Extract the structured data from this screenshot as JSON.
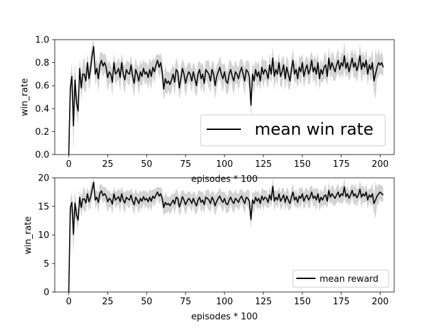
{
  "chart_data": [
    {
      "type": "line",
      "title": "",
      "xlabel": "episodes * 100",
      "ylabel": "win_rate",
      "xlim": [
        -9,
        209
      ],
      "ylim": [
        0,
        1
      ],
      "x_ticks": [
        0,
        25,
        50,
        75,
        100,
        125,
        150,
        175,
        200
      ],
      "y_ticks": [
        0.0,
        0.2,
        0.4,
        0.6,
        0.8,
        1.0
      ],
      "y_tick_labels": [
        "0.0",
        "0.2",
        "0.4",
        "0.6",
        "0.8",
        "1.0"
      ],
      "grid": false,
      "legend_position": "lower-right",
      "series": [
        {
          "name": "mean win rate",
          "color": "#000000",
          "band_color": "#d3d3d3",
          "x_start": 0,
          "x_step": 1,
          "values": [
            0.0,
            0.58,
            0.68,
            0.25,
            0.65,
            0.45,
            0.38,
            0.75,
            0.58,
            0.7,
            0.7,
            0.64,
            0.8,
            0.66,
            0.75,
            0.86,
            0.94,
            0.7,
            0.75,
            0.66,
            0.78,
            0.82,
            0.77,
            0.8,
            0.76,
            0.67,
            0.72,
            0.7,
            0.63,
            0.8,
            0.7,
            0.72,
            0.75,
            0.67,
            0.8,
            0.7,
            0.65,
            0.74,
            0.71,
            0.7,
            0.78,
            0.68,
            0.62,
            0.74,
            0.7,
            0.64,
            0.72,
            0.68,
            0.75,
            0.7,
            0.72,
            0.67,
            0.74,
            0.68,
            0.76,
            0.72,
            0.78,
            0.82,
            0.76,
            0.8,
            0.72,
            0.57,
            0.66,
            0.62,
            0.64,
            0.61,
            0.65,
            0.7,
            0.63,
            0.74,
            0.72,
            0.58,
            0.66,
            0.75,
            0.7,
            0.62,
            0.68,
            0.72,
            0.7,
            0.64,
            0.72,
            0.66,
            0.6,
            0.7,
            0.74,
            0.66,
            0.7,
            0.62,
            0.74,
            0.72,
            0.7,
            0.64,
            0.74,
            0.7,
            0.6,
            0.68,
            0.72,
            0.76,
            0.7,
            0.66,
            0.72,
            0.64,
            0.62,
            0.7,
            0.74,
            0.68,
            0.64,
            0.72,
            0.7,
            0.66,
            0.72,
            0.76,
            0.7,
            0.64,
            0.74,
            0.72,
            0.68,
            0.43,
            0.7,
            0.64,
            0.74,
            0.68,
            0.72,
            0.64,
            0.76,
            0.7,
            0.74,
            0.72,
            0.66,
            0.78,
            0.7,
            0.84,
            0.68,
            0.74,
            0.7,
            0.8,
            0.68,
            0.72,
            0.78,
            0.66,
            0.76,
            0.7,
            0.64,
            0.74,
            0.82,
            0.7,
            0.74,
            0.66,
            0.76,
            0.72,
            0.8,
            0.68,
            0.74,
            0.78,
            0.7,
            0.74,
            0.82,
            0.72,
            0.76,
            0.7,
            0.8,
            0.66,
            0.74,
            0.7,
            0.76,
            0.78,
            0.68,
            0.84,
            0.74,
            0.8,
            0.76,
            0.72,
            0.78,
            0.82,
            0.74,
            0.8,
            0.77,
            0.86,
            0.75,
            0.8,
            0.72,
            0.78,
            0.84,
            0.76,
            0.8,
            0.73,
            0.78,
            0.86,
            0.74,
            0.8,
            0.76,
            0.82,
            0.7,
            0.78,
            0.74,
            0.8,
            0.64,
            0.7,
            0.76,
            0.8,
            0.78,
            0.8,
            0.76
          ],
          "band_half_width": [
            0.0,
            0.1,
            0.12,
            0.22,
            0.15,
            0.1,
            0.12,
            0.08,
            0.12,
            0.1,
            0.15,
            0.1,
            0.08,
            0.1,
            0.12,
            0.1,
            0.06,
            0.1,
            0.08,
            0.12,
            0.1,
            0.08,
            0.1,
            0.08,
            0.1,
            0.12,
            0.1,
            0.08,
            0.12,
            0.08,
            0.1,
            0.08,
            0.1,
            0.12,
            0.08,
            0.1,
            0.12,
            0.08,
            0.1,
            0.1,
            0.08,
            0.1,
            0.12,
            0.1,
            0.08,
            0.12,
            0.1,
            0.1,
            0.08,
            0.1,
            0.08,
            0.1,
            0.1,
            0.12,
            0.08,
            0.1,
            0.08,
            0.06,
            0.1,
            0.08,
            0.1,
            0.1,
            0.12,
            0.1,
            0.08,
            0.1,
            0.1,
            0.08,
            0.12,
            0.1,
            0.08,
            0.1,
            0.12,
            0.08,
            0.1,
            0.12,
            0.1,
            0.08,
            0.1,
            0.1,
            0.08,
            0.12,
            0.1,
            0.1,
            0.08,
            0.12,
            0.1,
            0.1,
            0.08,
            0.1,
            0.12,
            0.1,
            0.08,
            0.1,
            0.12,
            0.1,
            0.08,
            0.1,
            0.1,
            0.12,
            0.08,
            0.1,
            0.1,
            0.12,
            0.08,
            0.1,
            0.12,
            0.1,
            0.08,
            0.1,
            0.1,
            0.08,
            0.1,
            0.12,
            0.08,
            0.1,
            0.12,
            0.1,
            0.1,
            0.12,
            0.08,
            0.1,
            0.1,
            0.08,
            0.1,
            0.12,
            0.08,
            0.1,
            0.08,
            0.1,
            0.08,
            0.1,
            0.12,
            0.08,
            0.1,
            0.08,
            0.1,
            0.12,
            0.08,
            0.1,
            0.1,
            0.12,
            0.08,
            0.1,
            0.1,
            0.08,
            0.1,
            0.08,
            0.1,
            0.12,
            0.08,
            0.1,
            0.1,
            0.08,
            0.1,
            0.12,
            0.08,
            0.1,
            0.1,
            0.12,
            0.08,
            0.1,
            0.1,
            0.08,
            0.1,
            0.12,
            0.08,
            0.1,
            0.08,
            0.1,
            0.12,
            0.08,
            0.1,
            0.1,
            0.08,
            0.1,
            0.1,
            0.12,
            0.08,
            0.1,
            0.08,
            0.1,
            0.08,
            0.1,
            0.12,
            0.1,
            0.08,
            0.1,
            0.12,
            0.1,
            0.08,
            0.1,
            0.1,
            0.08,
            0.1,
            0.12,
            0.1,
            0.22,
            0.1,
            0.12,
            0.08,
            0.1,
            0.08,
            0.1
          ]
        }
      ]
    },
    {
      "type": "line",
      "title": "",
      "xlabel": "episodes * 100",
      "ylabel": "win_rate",
      "xlim": [
        -9,
        209
      ],
      "ylim": [
        0,
        20
      ],
      "x_ticks": [
        0,
        25,
        50,
        75,
        100,
        125,
        150,
        175,
        200
      ],
      "y_ticks": [
        0,
        5,
        10,
        15,
        20
      ],
      "y_tick_labels": [
        "0",
        "5",
        "10",
        "15",
        "20"
      ],
      "grid": false,
      "legend_position": "lower-right",
      "series": [
        {
          "name": "mean reward",
          "color": "#000000",
          "band_color": "#d3d3d3",
          "x_start": 0,
          "x_step": 1,
          "values": [
            0.0,
            14.8,
            15.7,
            10.1,
            15.6,
            13.5,
            12.6,
            16.6,
            14.8,
            16.3,
            16.3,
            15.6,
            17.2,
            15.8,
            16.6,
            17.9,
            19.2,
            16.1,
            16.6,
            15.7,
            17.3,
            17.7,
            16.9,
            17.2,
            16.8,
            15.8,
            16.4,
            16.1,
            15.4,
            17.2,
            16.1,
            16.4,
            16.7,
            15.8,
            17.2,
            16.1,
            15.6,
            16.6,
            16.3,
            16.1,
            17.0,
            15.9,
            15.3,
            16.6,
            16.1,
            15.5,
            16.4,
            15.9,
            16.7,
            16.1,
            16.4,
            15.8,
            16.6,
            15.9,
            16.8,
            16.4,
            17.0,
            17.5,
            16.8,
            17.2,
            16.4,
            14.8,
            15.7,
            15.3,
            15.5,
            15.1,
            15.6,
            16.1,
            15.4,
            16.6,
            16.4,
            14.9,
            15.7,
            16.7,
            16.1,
            15.3,
            15.9,
            16.4,
            16.1,
            15.5,
            16.4,
            15.7,
            15.1,
            16.1,
            16.6,
            15.7,
            16.1,
            15.3,
            16.6,
            16.4,
            16.1,
            15.5,
            16.6,
            16.1,
            15.1,
            15.9,
            16.4,
            16.8,
            16.1,
            15.7,
            16.4,
            15.5,
            15.3,
            16.1,
            16.6,
            15.9,
            15.5,
            16.4,
            16.1,
            15.7,
            16.4,
            16.8,
            16.1,
            15.5,
            16.6,
            16.4,
            15.9,
            12.7,
            16.1,
            15.5,
            16.6,
            15.9,
            16.4,
            15.5,
            16.8,
            16.1,
            16.6,
            16.4,
            15.7,
            17.0,
            16.1,
            18.5,
            15.9,
            16.6,
            16.1,
            17.2,
            15.9,
            16.4,
            17.0,
            15.7,
            16.8,
            16.1,
            15.5,
            16.6,
            17.5,
            16.1,
            16.6,
            15.7,
            16.8,
            16.4,
            17.2,
            15.9,
            16.6,
            17.0,
            16.1,
            16.6,
            17.5,
            16.4,
            16.8,
            16.1,
            17.2,
            15.7,
            16.6,
            16.1,
            16.8,
            17.0,
            15.9,
            17.8,
            16.6,
            17.2,
            16.8,
            16.4,
            17.0,
            17.5,
            16.6,
            17.2,
            16.9,
            18.4,
            16.7,
            17.2,
            16.4,
            17.0,
            17.8,
            16.8,
            17.2,
            16.5,
            17.0,
            18.0,
            16.6,
            17.2,
            16.8,
            17.5,
            16.1,
            17.0,
            16.6,
            17.2,
            15.5,
            16.1,
            16.8,
            17.2,
            17.5,
            17.2,
            17.0
          ],
          "band_half_width": [
            0.0,
            1.5,
            1.8,
            3.5,
            2.2,
            1.5,
            1.8,
            1.2,
            1.8,
            1.5,
            2.2,
            1.5,
            1.2,
            1.5,
            1.8,
            1.5,
            0.9,
            1.5,
            1.2,
            1.8,
            1.5,
            1.2,
            1.5,
            1.2,
            1.5,
            1.8,
            1.5,
            1.2,
            1.8,
            1.2,
            1.5,
            1.2,
            1.5,
            1.8,
            1.2,
            1.5,
            1.8,
            1.2,
            1.5,
            1.5,
            1.2,
            1.5,
            1.8,
            1.5,
            1.2,
            1.8,
            1.5,
            1.5,
            1.2,
            1.5,
            1.2,
            1.5,
            1.5,
            1.8,
            1.2,
            1.5,
            1.2,
            0.9,
            1.5,
            1.2,
            1.5,
            1.5,
            1.8,
            1.5,
            1.2,
            1.5,
            1.5,
            1.2,
            1.8,
            1.5,
            1.2,
            1.5,
            1.8,
            1.2,
            1.5,
            1.8,
            1.5,
            1.2,
            1.5,
            1.5,
            1.2,
            1.8,
            1.5,
            1.5,
            1.2,
            1.8,
            1.5,
            1.5,
            1.2,
            1.5,
            1.8,
            1.5,
            1.2,
            1.5,
            1.8,
            1.5,
            1.2,
            1.5,
            1.5,
            1.8,
            1.2,
            1.5,
            1.5,
            1.8,
            1.2,
            1.5,
            1.8,
            1.5,
            1.2,
            1.5,
            1.5,
            1.2,
            1.5,
            1.8,
            1.2,
            1.5,
            1.8,
            1.5,
            1.5,
            1.8,
            1.2,
            1.5,
            1.5,
            1.2,
            1.5,
            1.8,
            1.2,
            1.5,
            1.2,
            1.5,
            1.2,
            1.5,
            1.8,
            1.2,
            1.5,
            1.2,
            1.5,
            1.8,
            1.2,
            1.5,
            1.5,
            1.8,
            1.2,
            1.5,
            1.5,
            1.2,
            1.5,
            1.2,
            1.5,
            1.8,
            1.2,
            1.5,
            1.5,
            1.2,
            1.5,
            1.8,
            1.2,
            1.5,
            1.5,
            1.8,
            1.2,
            1.5,
            1.5,
            1.2,
            1.5,
            1.8,
            1.2,
            1.5,
            1.2,
            1.5,
            1.8,
            1.2,
            1.5,
            1.5,
            1.2,
            1.5,
            1.5,
            1.8,
            1.2,
            1.5,
            1.2,
            1.5,
            1.2,
            1.5,
            1.8,
            1.5,
            1.2,
            1.5,
            1.8,
            1.5,
            1.2,
            1.5,
            1.5,
            1.2,
            1.5,
            1.8,
            1.5,
            3.2,
            1.5,
            1.8,
            1.2,
            1.5,
            1.2,
            1.5
          ]
        }
      ]
    }
  ]
}
